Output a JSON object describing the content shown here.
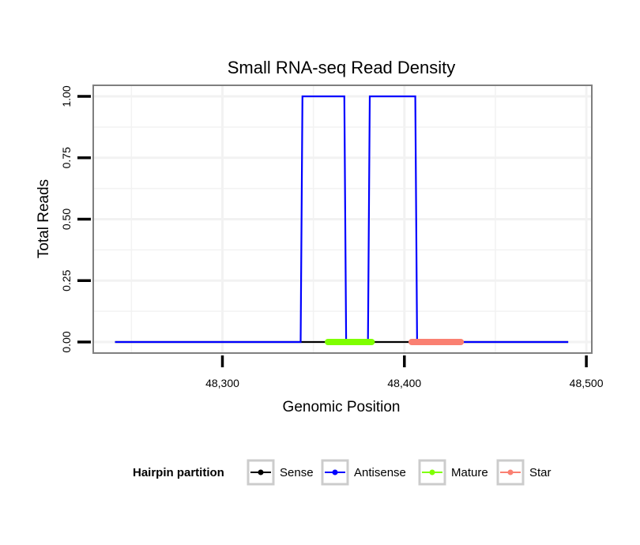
{
  "chart_data": {
    "type": "line",
    "title": "Small RNA-seq Read Density",
    "xlabel": "Genomic Position",
    "ylabel": "Total Reads",
    "xlim": [
      48229,
      48503
    ],
    "ylim": [
      -0.045,
      1.045
    ],
    "x_ticks": [
      48300,
      48400,
      48500
    ],
    "x_tick_labels": [
      "48,300",
      "48,400",
      "48,500"
    ],
    "y_ticks": [
      0,
      0.25,
      0.5,
      0.75,
      1.0
    ],
    "y_tick_labels": [
      "0.00",
      "0.25",
      "0.50",
      "0.75",
      "1.00"
    ],
    "grid": true,
    "legend_position": "bottom",
    "legend_title": "Hairpin partition",
    "series": [
      {
        "name": "Sense",
        "color": "#000000",
        "x": [
          48241,
          48490
        ],
        "values": [
          0,
          0
        ]
      },
      {
        "name": "Antisense",
        "color": "#0000ff",
        "x": [
          48241,
          48343,
          48344,
          48367,
          48368,
          48380,
          48381,
          48406,
          48407,
          48490
        ],
        "values": [
          0,
          0,
          1,
          1,
          0,
          0,
          1,
          1,
          0,
          0
        ]
      }
    ],
    "segments": [
      {
        "name": "Mature",
        "color": "#7fff00",
        "start": 48358,
        "end": 48382
      },
      {
        "name": "Star",
        "color": "#fa8072",
        "start": 48404,
        "end": 48431
      }
    ],
    "legend": [
      {
        "name": "Sense",
        "color": "#000000"
      },
      {
        "name": "Antisense",
        "color": "#0000ff"
      },
      {
        "name": "Mature",
        "color": "#7fff00"
      },
      {
        "name": "Star",
        "color": "#fa8072"
      }
    ]
  }
}
